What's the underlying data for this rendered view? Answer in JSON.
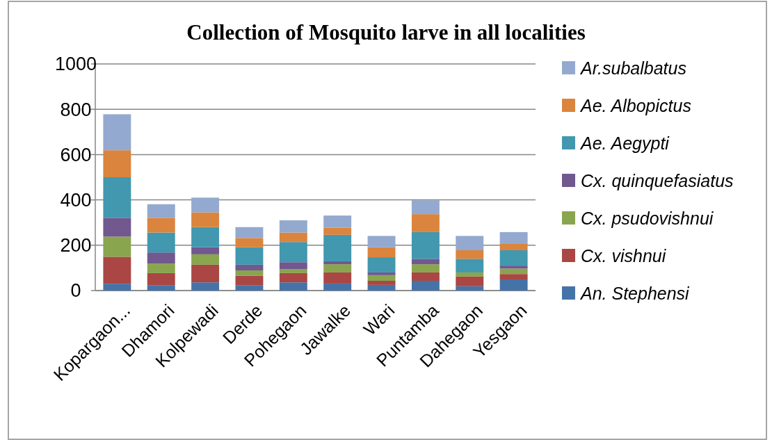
{
  "chart_data": {
    "type": "bar",
    "title": "Collection of Mosquito larve in all localities",
    "categories": [
      "Kopargaon...",
      "Dhamori",
      "Kolpewadi",
      "Derde",
      "Pohegaon",
      "Jawalke",
      "Wari",
      "Puntamba",
      "Dahegaon",
      "Yesgaon"
    ],
    "stacked": true,
    "ylim": [
      0,
      1000
    ],
    "yticks": [
      0,
      200,
      400,
      600,
      800,
      1000
    ],
    "grid": "y",
    "legend": "right",
    "series": [
      {
        "name": "An. Stephensi",
        "color": "#4573a7",
        "values": [
          30,
          24,
          36,
          24,
          36,
          31,
          25,
          43,
          19,
          49
        ]
      },
      {
        "name": "Cx. vishnui",
        "color": "#aa4644",
        "values": [
          119,
          53,
          78,
          41,
          41,
          49,
          18,
          37,
          43,
          24
        ]
      },
      {
        "name": "Cx. psudovishnui",
        "color": "#89a54e",
        "values": [
          89,
          42,
          46,
          24,
          17,
          36,
          25,
          36,
          18,
          24
        ]
      },
      {
        "name": "Cx. quinquefasiatus",
        "color": "#71588f",
        "values": [
          83,
          49,
          31,
          25,
          31,
          13,
          12,
          24,
          0,
          13
        ]
      },
      {
        "name": "Ae. Aegypti",
        "color": "#4198af",
        "values": [
          179,
          88,
          89,
          77,
          89,
          117,
          67,
          118,
          60,
          68
        ]
      },
      {
        "name": "Ae. Albopictus",
        "color": "#db843d",
        "values": [
          119,
          65,
          65,
          41,
          42,
          31,
          44,
          79,
          38,
          30
        ]
      },
      {
        "name": "Ar.subalbatus",
        "color": "#93a9cf",
        "values": [
          159,
          60,
          65,
          48,
          54,
          54,
          50,
          61,
          63,
          50
        ]
      }
    ]
  }
}
